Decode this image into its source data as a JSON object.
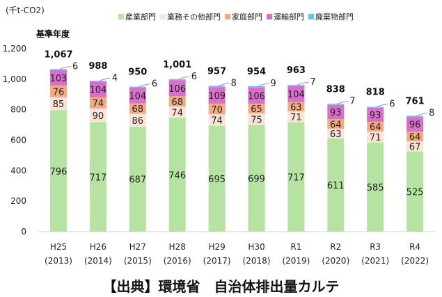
{
  "chart_data": {
    "type": "bar",
    "stacked": true,
    "unit_label": "(千t-CO2)",
    "base_year_label": "基準年度",
    "categories": [
      "H25",
      "H26",
      "H27",
      "H28",
      "H29",
      "H30",
      "R1",
      "R2",
      "R3",
      "R4"
    ],
    "sub_categories": [
      "(2013)",
      "(2014)",
      "(2015)",
      "(2016)",
      "(2017)",
      "(2018)",
      "(2019)",
      "(2020)",
      "(2021)",
      "(2022)"
    ],
    "series": [
      {
        "name": "産業部門",
        "color": "#b6e3a2",
        "values": [
          796,
          717,
          687,
          746,
          695,
          699,
          717,
          611,
          585,
          525
        ]
      },
      {
        "name": "業務その他部門",
        "color": "#fce3d6",
        "values": [
          85,
          90,
          86,
          74,
          74,
          75,
          71,
          63,
          71,
          67
        ]
      },
      {
        "name": "家庭部門",
        "color": "#f4ab82",
        "values": [
          76,
          74,
          68,
          68,
          70,
          65,
          63,
          64,
          64,
          64
        ]
      },
      {
        "name": "運輸部門",
        "color": "#d76fcb",
        "values": [
          103,
          104,
          104,
          106,
          109,
          106,
          104,
          93,
          93,
          96
        ]
      },
      {
        "name": "廃棄物部門",
        "color": "#5bc8f1",
        "values": [
          6,
          4,
          6,
          6,
          8,
          9,
          7,
          7,
          6,
          8
        ]
      }
    ],
    "totals": [
      "1,067",
      "988",
      "950",
      "1,001",
      "957",
      "954",
      "963",
      "838",
      "818",
      "761"
    ],
    "yticks": [
      "0",
      "200",
      "400",
      "600",
      "800",
      "1,000",
      "1,200"
    ],
    "ylim": [
      0,
      1200
    ],
    "legend": "top",
    "grid": false
  },
  "source": "【出典】環境省　自治体排出量カルテ"
}
